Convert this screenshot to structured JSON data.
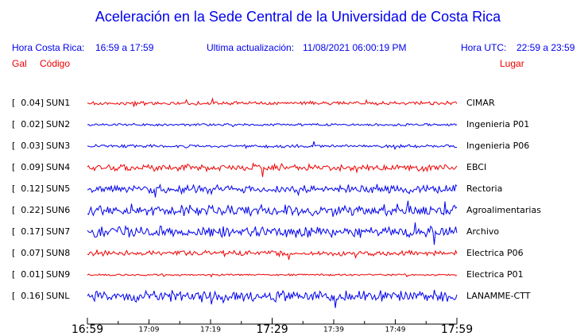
{
  "header": {
    "title": "Aceleración en la Sede Central de la Universidad de Costa Rica",
    "local_label": "Hora Costa Rica:",
    "local_range": "16:59 a 17:59",
    "update_label": "Ultima actualización:",
    "update_time": "11/08/2021 06:00:19 PM",
    "utc_label": "Hora UTC:",
    "utc_range": "22:59 a 23:59",
    "gal_heading": "Gal",
    "code_heading": "Código",
    "place_heading": "Lugar"
  },
  "stations": [
    {
      "gal": "[  0.04]",
      "code": "SUN1",
      "place": "CIMAR",
      "color": "#ee0000"
    },
    {
      "gal": "[  0.02]",
      "code": "SUN2",
      "place": "Ingenieria P01",
      "color": "#0000ee"
    },
    {
      "gal": "[  0.03]",
      "code": "SUN3",
      "place": "Ingenieria P06",
      "color": "#0000ee"
    },
    {
      "gal": "[  0.09]",
      "code": "SUN4",
      "place": "EBCI",
      "color": "#ee0000"
    },
    {
      "gal": "[  0.12]",
      "code": "SUN5",
      "place": "Rectoria",
      "color": "#0000ee"
    },
    {
      "gal": "[  0.22]",
      "code": "SUN6",
      "place": "Agroalimentarias",
      "color": "#0000ee"
    },
    {
      "gal": "[  0.17]",
      "code": "SUN7",
      "place": "Archivo",
      "color": "#0000ee"
    },
    {
      "gal": "[  0.07]",
      "code": "SUN8",
      "place": "Electrica P06",
      "color": "#ee0000"
    },
    {
      "gal": "[  0.01]",
      "code": "SUN9",
      "place": "Electrica P01",
      "color": "#ee0000"
    },
    {
      "gal": "[  0.16]",
      "code": "SUNL",
      "place": "LANAMME-CTT",
      "color": "#0000ee"
    }
  ],
  "time_axis": {
    "ticks": [
      {
        "label": "16:59",
        "major": true
      },
      {
        "label": "17:09",
        "major": false
      },
      {
        "label": "17:19",
        "major": false
      },
      {
        "label": "17:29",
        "major": true
      },
      {
        "label": "17:39",
        "major": false
      },
      {
        "label": "17:49",
        "major": false
      },
      {
        "label": "17:59",
        "major": true
      }
    ]
  }
}
